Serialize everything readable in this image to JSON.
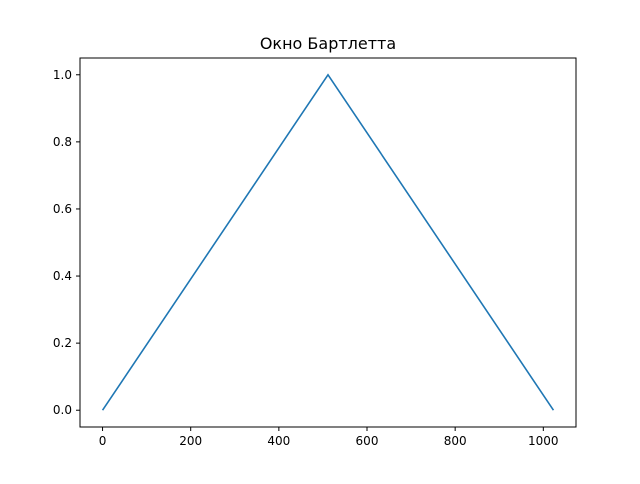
{
  "chart_data": {
    "type": "line",
    "title": "Окно Бартлетта",
    "xlabel": "",
    "ylabel": "",
    "xlim": [
      -51.15,
      1074.15
    ],
    "ylim": [
      -0.05,
      1.05
    ],
    "xticks": [
      0,
      200,
      400,
      600,
      800,
      1000
    ],
    "xtick_labels": [
      "0",
      "200",
      "400",
      "600",
      "800",
      "1000"
    ],
    "yticks": [
      0.0,
      0.2,
      0.4,
      0.6,
      0.8,
      1.0
    ],
    "ytick_labels": [
      "0.0",
      "0.2",
      "0.4",
      "0.6",
      "0.8",
      "1.0"
    ],
    "grid": false,
    "series": [
      {
        "color": "#1f77b4",
        "x": [
          0,
          511.5,
          1023
        ],
        "y": [
          0.0,
          1.0,
          0.0
        ]
      }
    ]
  }
}
